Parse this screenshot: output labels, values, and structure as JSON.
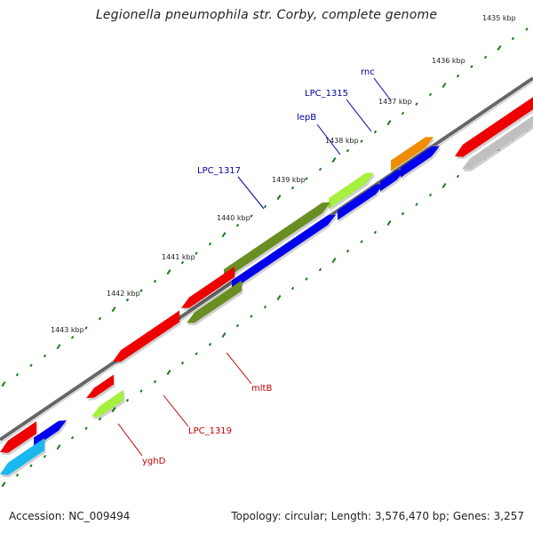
{
  "title": "Legionella pneumophila str. Corby, complete genome",
  "accession": "Accession: NC_009494",
  "summary": "Topology: circular; Length: 3,576,470 bp; Genes: 3,257",
  "ticks": [
    {
      "label": "1435 kbp",
      "pos": 1435
    },
    {
      "label": "1436 kbp",
      "pos": 1436
    },
    {
      "label": "1437 kbp",
      "pos": 1437
    },
    {
      "label": "1438 kbp",
      "pos": 1438
    },
    {
      "label": "1439 kbp",
      "pos": 1439
    },
    {
      "label": "1440 kbp",
      "pos": 1440
    },
    {
      "label": "1441 kbp",
      "pos": 1441
    },
    {
      "label": "1442 kbp",
      "pos": 1442
    },
    {
      "label": "1443 kbp",
      "pos": 1443
    }
  ],
  "genes": [
    {
      "label": "rnc",
      "strand": "+"
    },
    {
      "label": "LPC_1315",
      "strand": "+"
    },
    {
      "label": "lepB",
      "strand": "+"
    },
    {
      "label": "LPC_1317",
      "strand": "+"
    },
    {
      "label": "mltB",
      "strand": "-"
    },
    {
      "label": "LPC_1319",
      "strand": "-"
    },
    {
      "label": "yghD",
      "strand": "-"
    }
  ],
  "colors": {
    "backbone": "#777777",
    "ticks": "#1a7a1a",
    "cds_forward": "#0000ee",
    "cds_reverse": "#ee0000",
    "olive": "#6b8e23",
    "lime": "#a6f040",
    "orange": "#f08c00",
    "cyan": "#1ab8ee",
    "grey": "#c0c0c0",
    "label_forward": "#0000a0",
    "label_reverse": "#c00000"
  }
}
